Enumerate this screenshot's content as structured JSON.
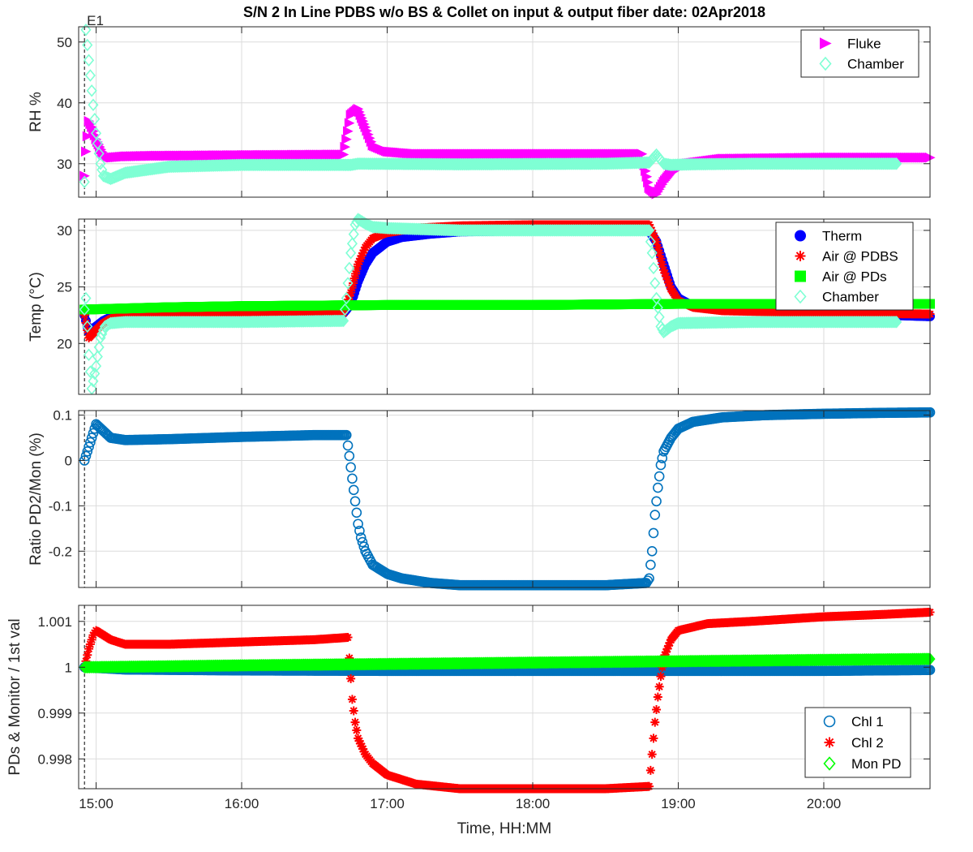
{
  "figure": {
    "title": "S/N 2 In Line PDBS w/o BS & Collet on input & output fiber date: 02Apr2018",
    "xlabel": "Time, HH:MM",
    "event_marker": "E1",
    "x_ticks": [
      "15:00",
      "16:00",
      "17:00",
      "18:00",
      "19:00",
      "20:00"
    ],
    "x_range_hours": [
      14.88,
      20.73
    ],
    "event_time_hours": 14.92
  },
  "chart_data": [
    {
      "type": "scatter",
      "ylabel": "RH %",
      "ylim": [
        24.5,
        52.5
      ],
      "yticks": [
        30,
        40,
        50
      ],
      "grid": true,
      "legend_position": "top-right",
      "series": [
        {
          "name": "Fluke",
          "marker": "triangle-right",
          "color": "#ff00ff",
          "x": [
            14.92,
            14.93,
            14.95,
            14.97,
            15.0,
            15.05,
            15.1,
            15.2,
            15.4,
            16.0,
            16.7,
            16.72,
            16.75,
            16.8,
            16.85,
            16.9,
            17.0,
            17.2,
            18.0,
            18.75,
            18.8,
            18.85,
            18.9,
            18.95,
            19.05,
            19.3,
            20.0,
            20.73
          ],
          "y": [
            28.0,
            32.0,
            37.0,
            36.0,
            34.0,
            31.5,
            31.0,
            31.2,
            31.3,
            31.4,
            31.5,
            34.0,
            38.0,
            39.0,
            36.0,
            33.0,
            32.0,
            31.6,
            31.6,
            31.6,
            26.0,
            25.0,
            27.0,
            28.5,
            30.0,
            30.8,
            31.0,
            31.0
          ]
        },
        {
          "name": "Chamber",
          "marker": "diamond",
          "color": "#7fffd4",
          "x": [
            14.92,
            14.93,
            14.95,
            14.97,
            15.0,
            15.03,
            15.05,
            15.1,
            15.2,
            15.5,
            16.0,
            16.7,
            16.75,
            16.8,
            17.5,
            18.5,
            18.8,
            18.85,
            18.9,
            18.95,
            19.1,
            19.5,
            20.0,
            20.5
          ],
          "y": [
            27.0,
            52.0,
            47.0,
            42.0,
            35.0,
            30.0,
            28.0,
            27.5,
            28.5,
            29.5,
            29.8,
            29.8,
            29.8,
            30.0,
            29.9,
            30.0,
            30.2,
            31.5,
            30.0,
            29.8,
            29.9,
            30.0,
            30.0,
            30.0
          ]
        }
      ]
    },
    {
      "type": "scatter",
      "ylabel": "Temp (°C)",
      "ylim": [
        15.5,
        31
      ],
      "yticks": [
        20,
        25,
        30
      ],
      "grid": true,
      "legend_position": "top-right",
      "series": [
        {
          "name": "Therm",
          "marker": "filled-circle",
          "color": "#0000ff",
          "x": [
            14.92,
            14.95,
            15.0,
            15.05,
            15.1,
            15.2,
            15.4,
            16.0,
            16.7,
            16.75,
            16.8,
            16.85,
            16.9,
            17.0,
            17.1,
            17.3,
            17.5,
            18.0,
            18.8,
            18.85,
            18.9,
            18.95,
            19.0,
            19.1,
            19.3,
            20.0,
            20.73
          ],
          "y": [
            22.5,
            21.0,
            21.5,
            22.0,
            22.3,
            22.5,
            22.6,
            22.7,
            22.7,
            23.5,
            25.5,
            27.0,
            28.0,
            29.0,
            29.4,
            29.7,
            29.9,
            30.0,
            30.0,
            29.0,
            27.0,
            25.0,
            24.0,
            23.3,
            23.0,
            22.7,
            22.4
          ]
        },
        {
          "name": "Air @ PDBS",
          "marker": "asterisk",
          "color": "#ff0000",
          "x": [
            14.92,
            14.95,
            15.0,
            15.05,
            15.1,
            15.2,
            15.4,
            16.0,
            16.7,
            16.75,
            16.8,
            16.85,
            16.9,
            17.0,
            17.2,
            17.5,
            18.0,
            18.8,
            18.85,
            18.9,
            18.95,
            19.0,
            19.1,
            19.3,
            20.0,
            20.73
          ],
          "y": [
            22.5,
            20.5,
            21.2,
            21.8,
            22.2,
            22.5,
            22.6,
            22.7,
            22.7,
            24.5,
            27.0,
            28.5,
            29.3,
            29.8,
            30.2,
            30.4,
            30.5,
            30.5,
            29.0,
            26.5,
            24.8,
            23.8,
            23.2,
            22.9,
            22.7,
            22.6
          ]
        },
        {
          "name": "Air @ PDs",
          "marker": "filled-square",
          "color": "#00ff00",
          "x": [
            14.92,
            15.5,
            16.0,
            17.0,
            18.0,
            19.0,
            20.0,
            20.73
          ],
          "y": [
            23.0,
            23.2,
            23.3,
            23.4,
            23.4,
            23.5,
            23.5,
            23.5
          ]
        },
        {
          "name": "Chamber",
          "marker": "diamond",
          "color": "#7fffd4",
          "x": [
            14.92,
            14.93,
            14.95,
            14.97,
            15.0,
            15.03,
            15.06,
            15.1,
            15.2,
            15.5,
            16.0,
            16.7,
            16.72,
            16.75,
            16.78,
            16.8,
            16.85,
            16.9,
            17.0,
            17.5,
            18.0,
            18.8,
            18.82,
            18.85,
            18.88,
            18.9,
            18.95,
            19.0,
            19.5,
            20.0,
            20.5
          ],
          "y": [
            23.0,
            24.0,
            19.0,
            16.0,
            18.0,
            20.5,
            21.5,
            21.8,
            21.9,
            21.9,
            21.9,
            22.0,
            24.0,
            28.0,
            30.5,
            31.0,
            30.6,
            30.3,
            30.2,
            30.0,
            30.0,
            30.0,
            28.0,
            24.0,
            21.5,
            21.0,
            21.5,
            21.8,
            21.9,
            21.9,
            21.9
          ]
        }
      ]
    },
    {
      "type": "scatter",
      "ylabel": "Ratio PD2/Mon (%)",
      "ylim": [
        -0.28,
        0.11
      ],
      "yticks": [
        -0.2,
        -0.1,
        0,
        0.1
      ],
      "grid": true,
      "series": [
        {
          "name": "",
          "marker": "circle",
          "color": "#0072bd",
          "x": [
            14.92,
            14.95,
            14.98,
            15.0,
            15.05,
            15.1,
            15.2,
            15.5,
            16.0,
            16.5,
            16.72,
            16.74,
            16.76,
            16.78,
            16.8,
            16.82,
            16.85,
            16.9,
            17.0,
            17.1,
            17.3,
            17.5,
            18.0,
            18.5,
            18.78,
            18.8,
            18.82,
            18.84,
            18.86,
            18.88,
            18.9,
            18.95,
            19.0,
            19.1,
            19.3,
            19.6,
            20.0,
            20.4,
            20.73
          ],
          "y": [
            0.0,
            0.03,
            0.06,
            0.08,
            0.065,
            0.05,
            0.045,
            0.047,
            0.052,
            0.056,
            0.056,
            0.01,
            -0.04,
            -0.09,
            -0.14,
            -0.17,
            -0.2,
            -0.23,
            -0.25,
            -0.26,
            -0.27,
            -0.275,
            -0.275,
            -0.275,
            -0.27,
            -0.26,
            -0.2,
            -0.12,
            -0.06,
            -0.01,
            0.02,
            0.05,
            0.07,
            0.085,
            0.095,
            0.1,
            0.103,
            0.105,
            0.106
          ]
        }
      ]
    },
    {
      "type": "scatter",
      "ylabel": "PDs & Monitor / 1st val",
      "ylim": [
        0.99735,
        1.00135
      ],
      "yticks": [
        0.998,
        0.999,
        1,
        1.001
      ],
      "ytick_labels": [
        "0.998",
        "0.999",
        "1",
        "1.001"
      ],
      "grid": true,
      "legend_position": "bottom-right",
      "series": [
        {
          "name": "Chl 1",
          "marker": "circle",
          "color": "#0072bd",
          "x": [
            14.92,
            15.2,
            16.0,
            17.0,
            18.0,
            19.0,
            20.0,
            20.73
          ],
          "y": [
            1.0,
            0.99995,
            0.99993,
            0.99992,
            0.99992,
            0.99992,
            0.99992,
            0.99994
          ]
        },
        {
          "name": "Chl 2",
          "marker": "asterisk",
          "color": "#ff0000",
          "x": [
            14.92,
            14.95,
            14.98,
            15.0,
            15.05,
            15.1,
            15.2,
            15.5,
            16.0,
            16.5,
            16.73,
            16.74,
            16.76,
            16.78,
            16.8,
            16.85,
            16.9,
            17.0,
            17.2,
            17.5,
            18.0,
            18.5,
            18.8,
            18.82,
            18.84,
            18.86,
            18.88,
            18.9,
            18.95,
            19.0,
            19.2,
            19.5,
            20.0,
            20.4,
            20.73
          ],
          "y": [
            1.0,
            1.0004,
            1.0007,
            1.0008,
            1.0007,
            1.0006,
            1.0005,
            1.0005,
            1.00055,
            1.0006,
            1.00065,
            1.0002,
            0.9993,
            0.9988,
            0.99845,
            0.9981,
            0.9979,
            0.99765,
            0.99745,
            0.99735,
            0.99735,
            0.99735,
            0.9974,
            0.9981,
            0.9988,
            0.99935,
            0.9998,
            1.0002,
            1.0006,
            1.0008,
            1.00095,
            1.001,
            1.0011,
            1.00115,
            1.0012
          ]
        },
        {
          "name": "Mon PD",
          "marker": "diamond",
          "color": "#00ff00",
          "x": [
            14.92,
            15.5,
            16.0,
            17.0,
            18.0,
            19.0,
            20.0,
            20.73
          ],
          "y": [
            1.0,
            1.00002,
            1.00004,
            1.00007,
            1.0001,
            1.00013,
            1.00016,
            1.00018
          ]
        }
      ]
    }
  ]
}
